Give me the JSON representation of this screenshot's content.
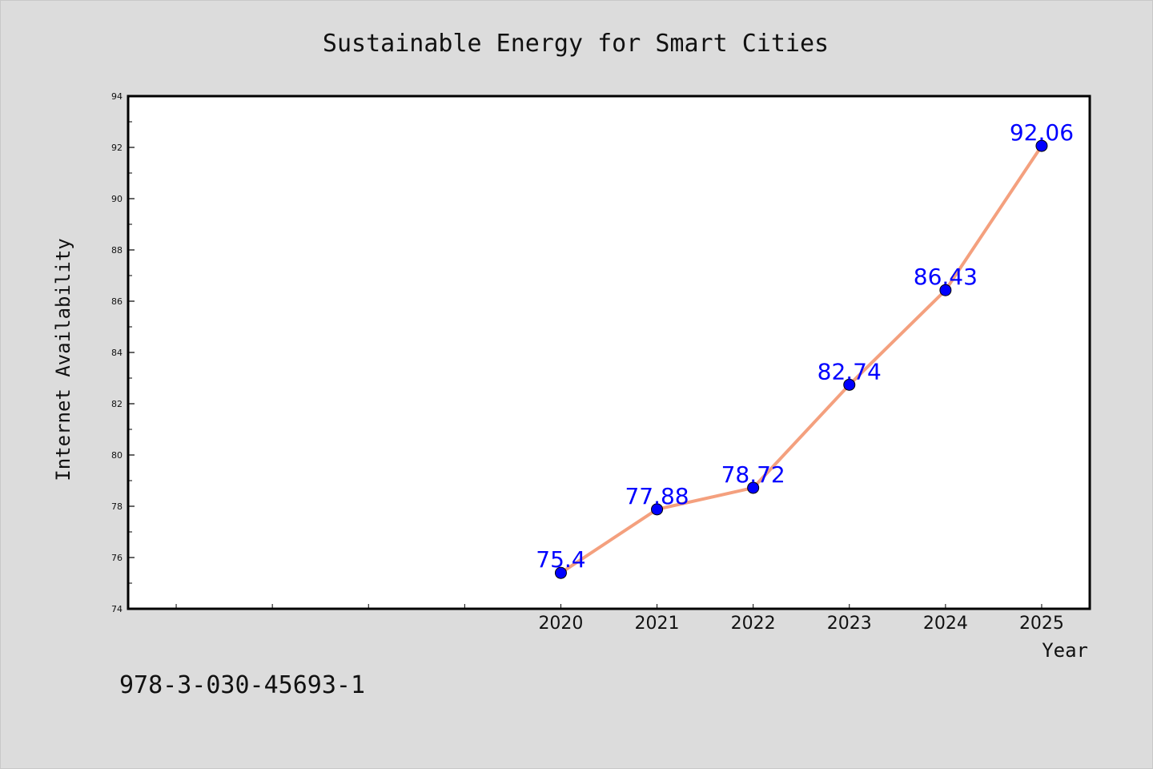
{
  "chart_data": {
    "type": "line",
    "title": "Sustainable Energy for Smart Cities",
    "xlabel": "Year",
    "ylabel": "Internet Availability",
    "x": [
      2020,
      2021,
      2022,
      2023,
      2024,
      2025
    ],
    "series": [
      {
        "values": [
          75.4,
          77.88,
          78.72,
          82.74,
          86.43,
          92.06
        ],
        "data_labels": [
          "75.4",
          "77.88",
          "78.72",
          "82.74",
          "86.43",
          "92.06"
        ],
        "line_color": "#f4a07e",
        "marker_color": "#0000ff"
      }
    ],
    "xlim": [
      2015.5,
      2025.5
    ],
    "ylim": [
      74,
      94
    ],
    "y_ticks": [
      74,
      76,
      78,
      80,
      82,
      84,
      86,
      88,
      90,
      92,
      94
    ],
    "x_tick_labels": [
      "2020",
      "2021",
      "2022",
      "2023",
      "2024",
      "2025"
    ],
    "grid": false,
    "legend": "none"
  },
  "footnote": "978-3-030-45693-1",
  "colors": {
    "background": "#dcdcdc",
    "plot_background": "#ffffff",
    "label_color": "#0000ff"
  }
}
